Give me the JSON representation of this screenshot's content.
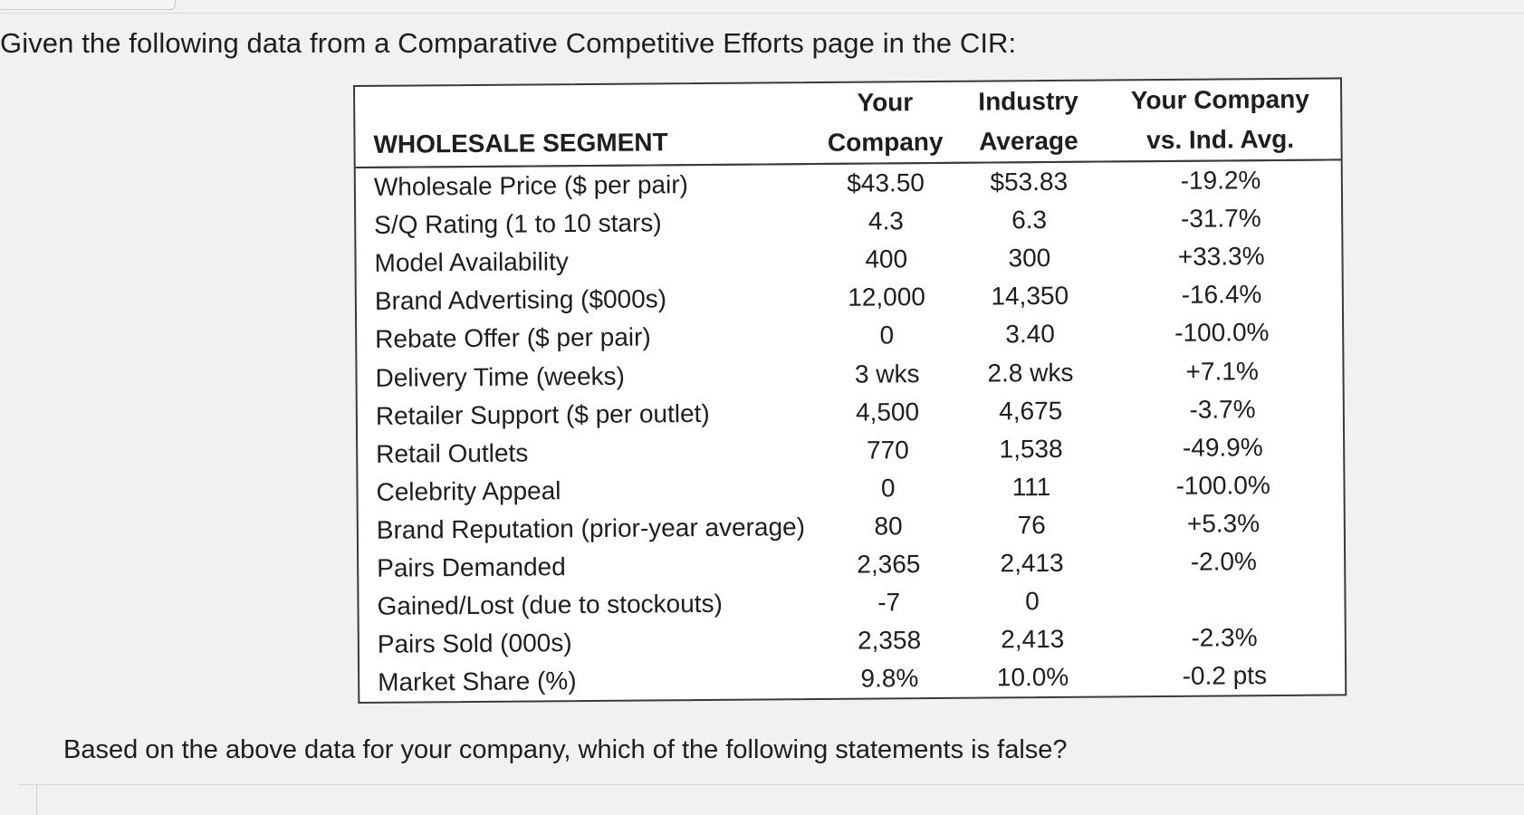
{
  "question": "Given the following data from a Comparative Competitive Efforts page in the CIR:",
  "followup": "Based on the above data for your company, which of the following statements is false?",
  "table": {
    "headers": {
      "segment": "WHOLESALE SEGMENT",
      "col1_line1": "Your",
      "col1_line2": "Company",
      "col2_line1": "Industry",
      "col2_line2": "Average",
      "col3_line1": "Your Company",
      "col3_line2": "vs. Ind. Avg."
    },
    "rows": [
      {
        "label": "Wholesale Price ($ per pair)",
        "company": "$43.50",
        "industry": "$53.83",
        "diff": "-19.2%"
      },
      {
        "label": "S/Q Rating (1 to 10 stars)",
        "company": "4.3",
        "industry": "6.3",
        "diff": "-31.7%"
      },
      {
        "label": "Model Availability",
        "company": "400",
        "industry": "300",
        "diff": "+33.3%"
      },
      {
        "label": "Brand Advertising ($000s)",
        "company": "12,000",
        "industry": "14,350",
        "diff": "-16.4%"
      },
      {
        "label": "Rebate Offer ($ per pair)",
        "company": "0",
        "industry": "3.40",
        "diff": "-100.0%"
      },
      {
        "label": "Delivery Time (weeks)",
        "company": "3 wks",
        "industry": "2.8 wks",
        "diff": "+7.1%"
      },
      {
        "label": "Retailer Support ($ per outlet)",
        "company": "4,500",
        "industry": "4,675",
        "diff": "-3.7%"
      },
      {
        "label": "Retail Outlets",
        "company": "770",
        "industry": "1,538",
        "diff": "-49.9%"
      },
      {
        "label": "Celebrity Appeal",
        "company": "0",
        "industry": "111",
        "diff": "-100.0%"
      },
      {
        "label": "Brand Reputation (prior-year average)",
        "company": "80",
        "industry": "76",
        "diff": "+5.3%"
      },
      {
        "label": "Pairs Demanded",
        "company": "2,365",
        "industry": "2,413",
        "diff": "-2.0%"
      },
      {
        "label": "Gained/Lost (due to stockouts)",
        "company": "-7",
        "industry": "0",
        "diff": ""
      },
      {
        "label": "Pairs Sold (000s)",
        "company": "2,358",
        "industry": "2,413",
        "diff": "-2.3%"
      },
      {
        "label": "Market Share (%)",
        "company": "9.8%",
        "industry": "10.0%",
        "diff": "-0.2 pts"
      }
    ]
  }
}
